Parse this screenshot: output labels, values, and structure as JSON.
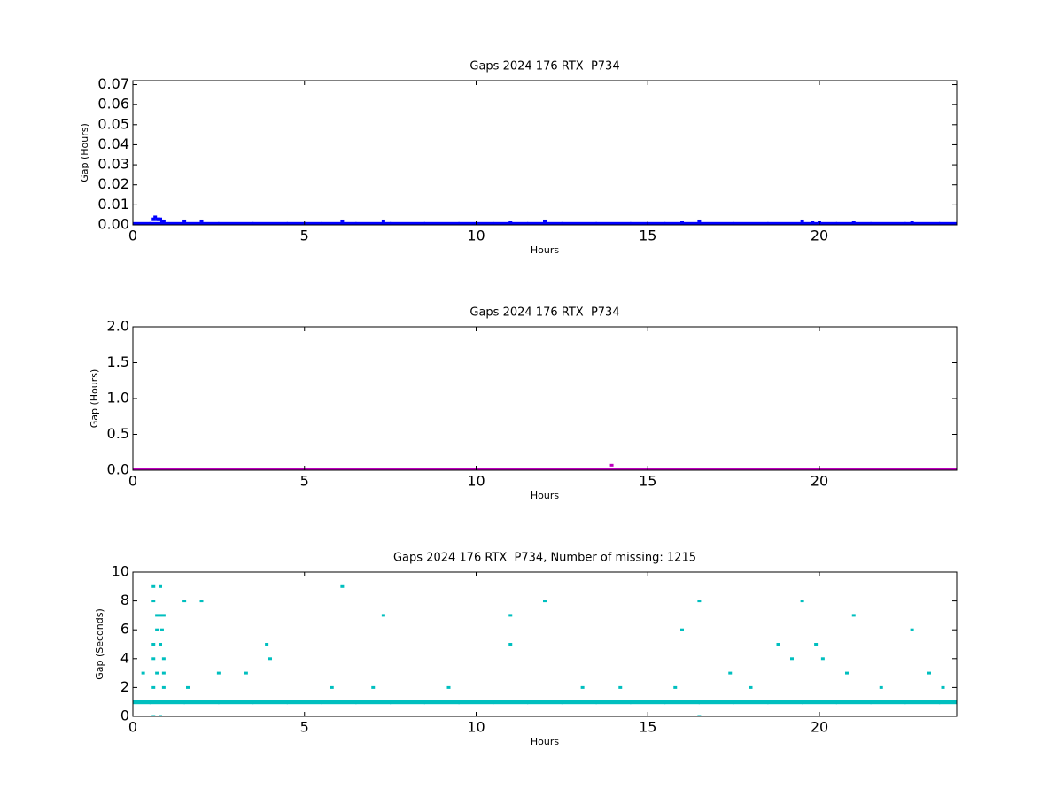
{
  "chart_data": [
    {
      "type": "scatter",
      "title": "Gaps 2024 176 RTX  P734",
      "x_label": "Hours",
      "y_label": "Gap (Hours)",
      "xlim": [
        0,
        24
      ],
      "xticks": [
        0,
        5,
        10,
        15,
        20
      ],
      "ylim": [
        0,
        0.072
      ],
      "yticks": [
        {
          "value": 0,
          "label": "0.00"
        },
        {
          "value": 0.01,
          "label": "0.01"
        },
        {
          "value": 0.02,
          "label": "0.02"
        },
        {
          "value": 0.03,
          "label": "0.03"
        },
        {
          "value": 0.04,
          "label": "0.04"
        },
        {
          "value": 0.05,
          "label": "0.05"
        },
        {
          "value": 0.06,
          "label": "0.06"
        },
        {
          "value": 0.07,
          "label": "0.07"
        }
      ],
      "series": [
        {
          "color": "#0000ff",
          "x": [
            0,
            1,
            2,
            3,
            4,
            5,
            6,
            7,
            8,
            9,
            10,
            11,
            12,
            13,
            14,
            15,
            16,
            17,
            18,
            19,
            20,
            21,
            22,
            23,
            24
          ],
          "values": [
            0.0003,
            0.0003,
            0.0003,
            0.0003,
            0.0003,
            0.0003,
            0.0003,
            0.0003,
            0.0003,
            0.0003,
            0.0003,
            0.0003,
            0.0003,
            0.0003,
            0.0003,
            0.0003,
            0.0003,
            0.0003,
            0.0003,
            0.0003,
            0.0003,
            0.0003,
            0.0003,
            0.0003,
            0.0003
          ]
        },
        {
          "color": "#0000ff",
          "x": [
            0.6,
            0.65,
            0.7,
            0.75,
            0.8,
            0.85,
            0.9,
            1.5,
            2.0,
            6.1,
            7.3,
            11.0,
            12.0,
            16.0,
            16.5,
            19.5,
            19.8,
            20.0,
            21.0,
            22.7
          ],
          "values": [
            0.003,
            0.004,
            0.003,
            0.003,
            0.003,
            0.002,
            0.002,
            0.002,
            0.002,
            0.002,
            0.002,
            0.0015,
            0.002,
            0.0015,
            0.002,
            0.002,
            0.0012,
            0.0012,
            0.0015,
            0.0015
          ]
        }
      ]
    },
    {
      "type": "scatter",
      "title": "Gaps 2024 176 RTX  P734",
      "x_label": "Hours",
      "y_label": "Gap (Hours)",
      "xlim": [
        0,
        24
      ],
      "xticks": [
        0,
        5,
        10,
        15,
        20
      ],
      "ylim": [
        0,
        2
      ],
      "yticks": [
        {
          "value": 0,
          "label": "0.0"
        },
        {
          "value": 0.5,
          "label": "0.5"
        },
        {
          "value": 1,
          "label": "1.0"
        },
        {
          "value": 1.5,
          "label": "1.5"
        },
        {
          "value": 2,
          "label": "2.0"
        }
      ],
      "series": [
        {
          "color": "#bf00bf",
          "x": [
            0,
            1,
            2,
            3,
            4,
            5,
            6,
            7,
            8,
            9,
            10,
            11,
            12,
            13,
            14,
            15,
            16,
            17,
            18,
            19,
            20,
            21,
            22,
            23,
            24
          ],
          "values": [
            0.0003,
            0.0003,
            0.0003,
            0.0003,
            0.0003,
            0.0003,
            0.0003,
            0.0003,
            0.0003,
            0.0003,
            0.0003,
            0.0003,
            0.0003,
            0.0003,
            0.0003,
            0.0003,
            0.0003,
            0.0003,
            0.0003,
            0.0003,
            0.0003,
            0.0003,
            0.0003,
            0.0003,
            0.0003
          ]
        },
        {
          "color": "#bf00bf",
          "x": [
            13.95
          ],
          "values": [
            0.07
          ]
        }
      ]
    },
    {
      "type": "scatter",
      "title": "Gaps 2024 176 RTX  P734, Number of missing: 1215",
      "x_label": "Hours",
      "y_label": "Gap (Seconds)",
      "xlim": [
        0,
        24
      ],
      "xticks": [
        0,
        5,
        10,
        15,
        20
      ],
      "ylim": [
        0,
        10
      ],
      "yticks": [
        0,
        2,
        4,
        6,
        8,
        10
      ],
      "series": [
        {
          "color": "#00bfbf",
          "x": [
            0,
            1,
            2,
            3,
            4,
            5,
            6,
            7,
            8,
            9,
            10,
            11,
            12,
            13,
            14,
            15,
            16,
            17,
            18,
            19,
            20,
            21,
            22,
            23,
            24
          ],
          "values": [
            1,
            1,
            1,
            1,
            1,
            1,
            1,
            1,
            1,
            1,
            1,
            1,
            1,
            1,
            1,
            1,
            1,
            1,
            1,
            1,
            1,
            1,
            1,
            1,
            1
          ]
        },
        {
          "color": "#00bfbf",
          "x": [
            0.6,
            0.8,
            0.6,
            0.7,
            0.8,
            0.9,
            0.7,
            0.85,
            0.6,
            0.8,
            0.6,
            0.9,
            0.7,
            0.9,
            0.6,
            0.9,
            0.6,
            0.8,
            1.5,
            2.0,
            6.1,
            7.3,
            11.0,
            11.0,
            12.0,
            16.0,
            16.5,
            19.5,
            21.0,
            22.7,
            3.9,
            4.0,
            18.8,
            19.2,
            19.9,
            20.1,
            0.3,
            2.5,
            3.3,
            17.4,
            20.8,
            23.2,
            1.6,
            5.8,
            7.0,
            9.2,
            13.1,
            14.2,
            15.8,
            18.0,
            21.8,
            23.6,
            16.5
          ],
          "values": [
            9,
            9,
            8,
            7,
            7,
            7,
            6,
            6,
            5,
            5,
            4,
            4,
            3,
            3,
            2,
            2,
            0,
            0,
            8,
            8,
            9,
            7,
            7,
            5,
            8,
            6,
            8,
            8,
            7,
            6,
            5,
            4,
            5,
            4,
            5,
            4,
            3,
            3,
            3,
            3,
            3,
            3,
            2,
            2,
            2,
            2,
            2,
            2,
            2,
            2,
            2,
            2,
            0
          ]
        }
      ]
    }
  ]
}
